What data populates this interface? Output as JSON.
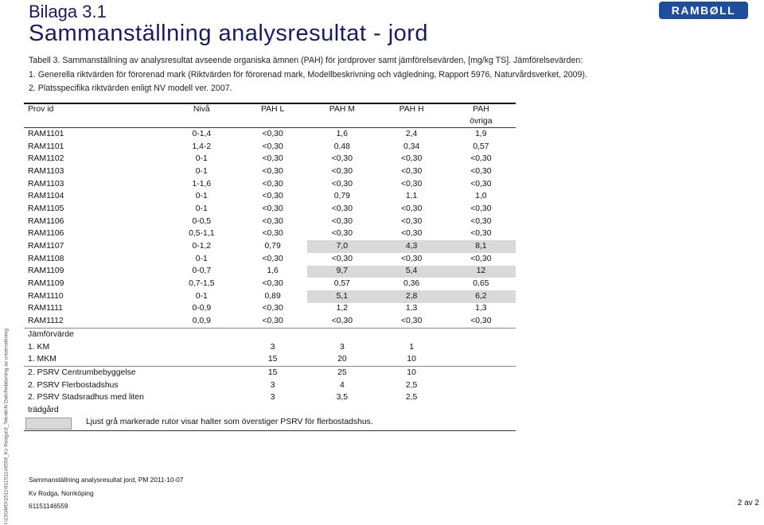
{
  "header": {
    "bilaga": "Bilaga 3.1",
    "title": "Sammanställning analysresultat - jord",
    "logo": "RAMBØLL"
  },
  "caption": {
    "line1": "Tabell 3. Sammanställning av analysresultat avseende organiska ämnen (PAH) för jordprover samt jämförelsevärden, [mg/kg TS]. Jämförelsevärden:",
    "line2": "1. Generella riktvärden för förorenad mark (Riktvärden för förorenad mark, Modellbeskrivning och vägledning, Rapport 5976, Naturvårdsverket, 2009).",
    "line3": "2. Platsspecifika riktvärden enligt NV modell ver. 2007."
  },
  "sidebar_text": "I:\\15GMO\\1511\\61151146559_Kv Rodga\\3_Teknik\\N Dok\\Rebbvning av undersökning",
  "table": {
    "headers": [
      "Prov id",
      "Nivå",
      "PAH L",
      "PAH M",
      "PAH H",
      "PAH"
    ],
    "header2_last": "övriga",
    "rows": [
      {
        "id": "RAM1101",
        "niva": "0-1,4",
        "l": "<0,30",
        "m": "1,6",
        "h": "2,4",
        "o": "1,9"
      },
      {
        "id": "RAM1101",
        "niva": "1,4-2",
        "l": "<0,30",
        "m": "0,48",
        "h": "0,34",
        "o": "0,57"
      },
      {
        "id": "RAM1102",
        "niva": "0-1",
        "l": "<0,30",
        "m": "<0,30",
        "h": "<0,30",
        "o": "<0,30"
      },
      {
        "id": "RAM1103",
        "niva": "0-1",
        "l": "<0,30",
        "m": "<0,30",
        "h": "<0,30",
        "o": "<0,30"
      },
      {
        "id": "RAM1103",
        "niva": "1-1,6",
        "l": "<0,30",
        "m": "<0,30",
        "h": "<0,30",
        "o": "<0,30"
      },
      {
        "id": "RAM1104",
        "niva": "0-1",
        "l": "<0,30",
        "m": "0,79",
        "h": "1,1",
        "o": "1,0"
      },
      {
        "id": "RAM1105",
        "niva": "0-1",
        "l": "<0,30",
        "m": "<0,30",
        "h": "<0,30",
        "o": "<0,30"
      },
      {
        "id": "RAM1106",
        "niva": "0-0,5",
        "l": "<0,30",
        "m": "<0,30",
        "h": "<0,30",
        "o": "<0,30"
      },
      {
        "id": "RAM1106",
        "niva": "0,5-1,1",
        "l": "<0,30",
        "m": "<0,30",
        "h": "<0,30",
        "o": "<0,30"
      },
      {
        "id": "RAM1107",
        "niva": "0-1,2",
        "l": "0,79",
        "m": "7,0",
        "h": "4,3",
        "o": "8,1"
      },
      {
        "id": "RAM1108",
        "niva": "0-1",
        "l": "<0,30",
        "m": "<0,30",
        "h": "<0,30",
        "o": "<0,30"
      },
      {
        "id": "RAM1109",
        "niva": "0-0,7",
        "l": "1,6",
        "m": "9,7",
        "h": "5,4",
        "o": "12"
      },
      {
        "id": "RAM1109",
        "niva": "0,7-1,5",
        "l": "<0,30",
        "m": "0,57",
        "h": "0,36",
        "o": "0,65"
      },
      {
        "id": "RAM1110",
        "niva": "0-1",
        "l": "0,89",
        "m": "5,1",
        "h": "2,8",
        "o": "6,2"
      },
      {
        "id": "RAM1111",
        "niva": "0-0,9",
        "l": "<0,30",
        "m": "1,2",
        "h": "1,3",
        "o": "1,3"
      },
      {
        "id": "RAM1112",
        "niva": "0,0,9",
        "l": "<0,30",
        "m": "<0,30",
        "h": "<0,30",
        "o": "<0,30"
      }
    ],
    "comparison_label": "Jämförvärde",
    "comparison": [
      {
        "label": "1. KM",
        "l": "3",
        "m": "3",
        "h": "1"
      },
      {
        "label": "1. MKM",
        "l": "15",
        "m": "20",
        "h": "10"
      },
      {
        "label": "2. PSRV Centrumbebyggelse",
        "l": "15",
        "m": "25",
        "h": "10"
      },
      {
        "label": "2. PSRV Flerbostadshus",
        "l": "3",
        "m": "4",
        "h": "2,5"
      },
      {
        "label": "2. PSRV Stadsradhus med liten",
        "label2": "trädgård",
        "l": "3",
        "m": "3,5",
        "h": "2,5"
      }
    ]
  },
  "legend": {
    "text": "Ljust grå markerade rutor visar halter som överstiger PSRV för flerbostadshus.",
    "color": "#d9d9d9"
  },
  "footer": {
    "line1": "Sammanställning analysresultat  jord, PM 2011-10-07",
    "line2": "Kv Rodga, Norrköping",
    "line3": "61151146559",
    "page": "2 av 2"
  }
}
